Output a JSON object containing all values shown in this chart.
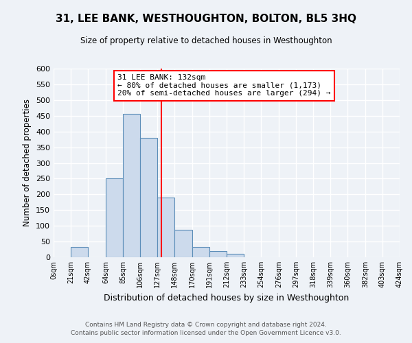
{
  "title": "31, LEE BANK, WESTHOUGHTON, BOLTON, BL5 3HQ",
  "subtitle": "Size of property relative to detached houses in Westhoughton",
  "xlabel": "Distribution of detached houses by size in Westhoughton",
  "ylabel": "Number of detached properties",
  "bin_edges": [
    0,
    21,
    42,
    64,
    85,
    106,
    127,
    148,
    170,
    191,
    212,
    233,
    254,
    276,
    297,
    318,
    339,
    360,
    382,
    403,
    424
  ],
  "bar_heights": [
    0,
    33,
    0,
    251,
    456,
    380,
    190,
    88,
    33,
    20,
    10,
    0,
    0,
    0,
    0,
    0,
    0,
    0,
    0,
    0
  ],
  "bar_color": "#ccdaec",
  "bar_edge_color": "#5b8db8",
  "vline_x": 132,
  "vline_color": "red",
  "annotation_title": "31 LEE BANK: 132sqm",
  "annotation_line1": "← 80% of detached houses are smaller (1,173)",
  "annotation_line2": "20% of semi-detached houses are larger (294) →",
  "annotation_box_color": "white",
  "annotation_box_edge": "red",
  "ylim": [
    0,
    600
  ],
  "yticks": [
    0,
    50,
    100,
    150,
    200,
    250,
    300,
    350,
    400,
    450,
    500,
    550,
    600
  ],
  "tick_labels": [
    "0sqm",
    "21sqm",
    "42sqm",
    "64sqm",
    "85sqm",
    "106sqm",
    "127sqm",
    "148sqm",
    "170sqm",
    "191sqm",
    "212sqm",
    "233sqm",
    "254sqm",
    "276sqm",
    "297sqm",
    "318sqm",
    "339sqm",
    "360sqm",
    "382sqm",
    "403sqm",
    "424sqm"
  ],
  "footer1": "Contains HM Land Registry data © Crown copyright and database right 2024.",
  "footer2": "Contains public sector information licensed under the Open Government Licence v3.0.",
  "bg_color": "#eef2f7",
  "plot_bg_color": "#eef2f7"
}
